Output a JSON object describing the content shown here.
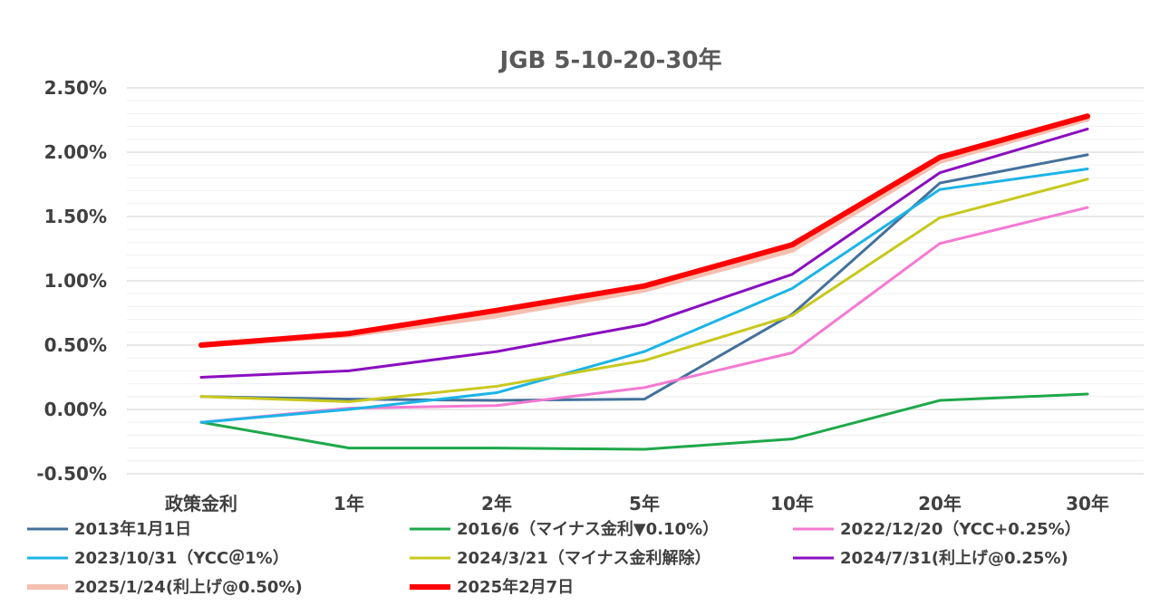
{
  "chart_data": {
    "type": "line",
    "title": "JGB 5-10-20-30年",
    "categories": [
      "政策金利",
      "1年",
      "2年",
      "5年",
      "10年",
      "20年",
      "30年"
    ],
    "y_tick_labels": [
      "2.50%",
      "2.00%",
      "1.50%",
      "1.00%",
      "0.50%",
      "0.00%",
      "-0.50%"
    ],
    "ylim": [
      -0.5,
      2.5
    ],
    "y_major_step": 0.5,
    "y_minor_step": 0.1,
    "grid": true,
    "legend_position": "bottom",
    "series": [
      {
        "name": "2013年1月1日",
        "color": "#44719b",
        "width": 3,
        "values": [
          0.1,
          0.08,
          0.07,
          0.08,
          0.74,
          1.76,
          1.98
        ]
      },
      {
        "name": "2016/6（マイナス金利▼0.10%）",
        "color": "#1fa84a",
        "width": 3,
        "values": [
          -0.1,
          -0.3,
          -0.3,
          -0.31,
          -0.23,
          0.07,
          0.12
        ]
      },
      {
        "name": "2022/12/20（YCC+0.25%）",
        "color": "#f47ad2",
        "width": 3,
        "values": [
          -0.1,
          0.01,
          0.03,
          0.17,
          0.44,
          1.29,
          1.57
        ]
      },
      {
        "name": "2023/10/31（YCC＠1%）",
        "color": "#1cb4e6",
        "width": 3,
        "values": [
          -0.1,
          0.0,
          0.13,
          0.45,
          0.94,
          1.71,
          1.87
        ]
      },
      {
        "name": "2024/3/21（マイナス金利解除）",
        "color": "#c8c81e",
        "width": 3,
        "values": [
          0.1,
          0.06,
          0.18,
          0.38,
          0.73,
          1.49,
          1.79
        ]
      },
      {
        "name": "2024/7/31(利上げ@0.25%)",
        "color": "#8a0fc0",
        "width": 3,
        "values": [
          0.25,
          0.3,
          0.45,
          0.66,
          1.05,
          1.84,
          2.18
        ]
      },
      {
        "name": "2025/1/24(利上げ@0.50%)",
        "color": "#f5bfb0",
        "width": 6,
        "values": [
          0.5,
          0.58,
          0.73,
          0.93,
          1.24,
          1.93,
          2.26
        ]
      },
      {
        "name": "2025年2月7日",
        "color": "#ff0000",
        "width": 6,
        "values": [
          0.5,
          0.59,
          0.77,
          0.96,
          1.28,
          1.96,
          2.28
        ]
      }
    ]
  }
}
